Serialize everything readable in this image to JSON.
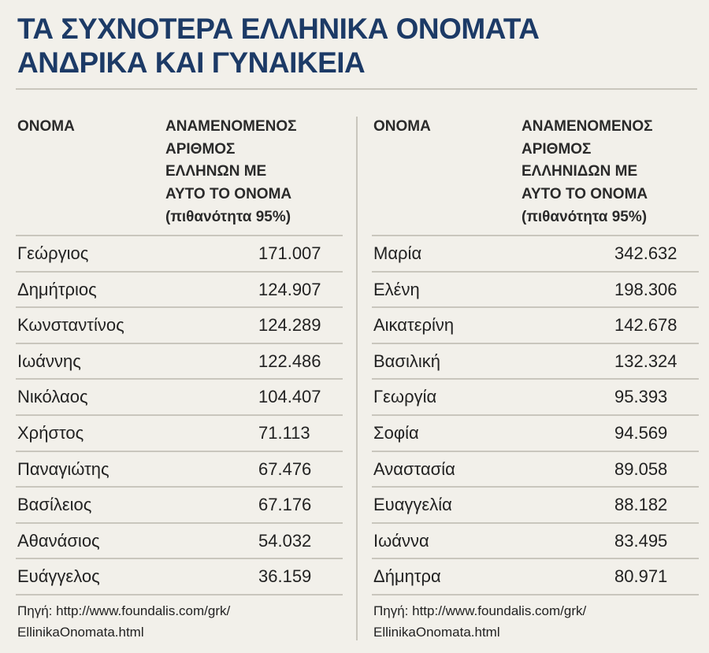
{
  "title": [
    "ΤΑ ΣΥΧΝΟΤΕΡΑ ΕΛΛΗΝΙΚΑ ΟΝΟΜΑΤΑ",
    "ΑΝΔΡΙΚΑ ΚΑΙ ΓΥΝΑΙΚΕΙΑ"
  ],
  "tables": [
    {
      "header": {
        "name": "ΟΝΟΜΑ",
        "count": [
          "ΑΝΑΜΕΝΟΜΕΝΟΣ",
          "ΑΡΙΘΜΟΣ",
          "ΕΛΛΗΝΩΝ ΜΕ",
          "ΑΥΤΟ ΤΟ ΟΝΟΜΑ",
          "(πιθανότητα 95%)"
        ]
      },
      "rows": [
        [
          "Γεώργιος",
          "171.007"
        ],
        [
          "Δημήτριος",
          "124.907"
        ],
        [
          "Κωνσταντίνος",
          "124.289"
        ],
        [
          "Ιωάννης",
          "122.486"
        ],
        [
          "Νικόλαος",
          "104.407"
        ],
        [
          "Χρήστος",
          "71.113"
        ],
        [
          "Παναγιώτης",
          "67.476"
        ],
        [
          "Βασίλειος",
          "67.176"
        ],
        [
          "Αθανάσιος",
          "54.032"
        ],
        [
          "Ευάγγελος",
          "36.159"
        ]
      ],
      "source": [
        "Πηγή: http://www.foundalis.com/grk/",
        "EllinikaOnomata.html"
      ]
    },
    {
      "header": {
        "name": "ΟΝΟΜΑ",
        "count": [
          "ΑΝΑΜΕΝΟΜΕΝΟΣ",
          "ΑΡΙΘΜΟΣ",
          "ΕΛΛΗΝΙΔΩΝ ΜΕ",
          "ΑΥΤΟ ΤΟ ΟΝΟΜΑ",
          "(πιθανότητα 95%)"
        ]
      },
      "rows": [
        [
          "Μαρία",
          "342.632"
        ],
        [
          "Ελένη",
          "198.306"
        ],
        [
          "Αικατερίνη",
          "142.678"
        ],
        [
          "Βασιλική",
          "132.324"
        ],
        [
          "Γεωργία",
          "95.393"
        ],
        [
          "Σοφία",
          "94.569"
        ],
        [
          "Αναστασία",
          "89.058"
        ],
        [
          "Ευαγγελία",
          "88.182"
        ],
        [
          "Ιωάννα",
          "83.495"
        ],
        [
          "Δήμητρα",
          "80.971"
        ]
      ],
      "source": [
        "Πηγή: http://www.foundalis.com/grk/",
        "EllinikaOnomata.html"
      ]
    }
  ]
}
